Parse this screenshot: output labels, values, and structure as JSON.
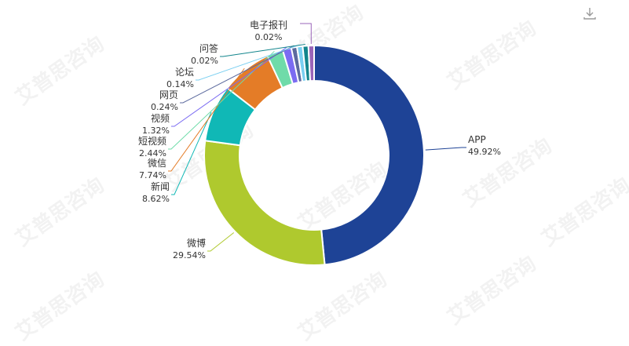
{
  "toolbar": {
    "download_icon": "download-icon"
  },
  "watermark": {
    "text": "艾普思咨询"
  },
  "chart_data": {
    "type": "pie",
    "donut": true,
    "title": "",
    "legend": "none",
    "slices": [
      {
        "name": "APP",
        "value": 49.92,
        "label": "49.92%",
        "color": "#1e4396"
      },
      {
        "name": "微博",
        "value": 29.54,
        "label": "29.54%",
        "color": "#afc92e"
      },
      {
        "name": "新闻",
        "value": 8.62,
        "label": "8.62%",
        "color": "#10b8b6"
      },
      {
        "name": "微信",
        "value": 7.74,
        "label": "7.74%",
        "color": "#e47c27"
      },
      {
        "name": "短视频",
        "value": 2.44,
        "label": "2.44%",
        "color": "#6fdba9"
      },
      {
        "name": "视频",
        "value": 1.32,
        "label": "1.32%",
        "color": "#7b6cf2"
      },
      {
        "name": "网页",
        "value": 0.24,
        "label": "0.24%",
        "color": "#5c6a9e"
      },
      {
        "name": "论坛",
        "value": 0.14,
        "label": "0.14%",
        "color": "#79cff1"
      },
      {
        "name": "问答",
        "value": 0.02,
        "label": "0.02%",
        "color": "#12858c"
      },
      {
        "name": "电子报刊",
        "value": 0.02,
        "label": "0.02%",
        "color": "#9a64b8"
      }
    ]
  }
}
